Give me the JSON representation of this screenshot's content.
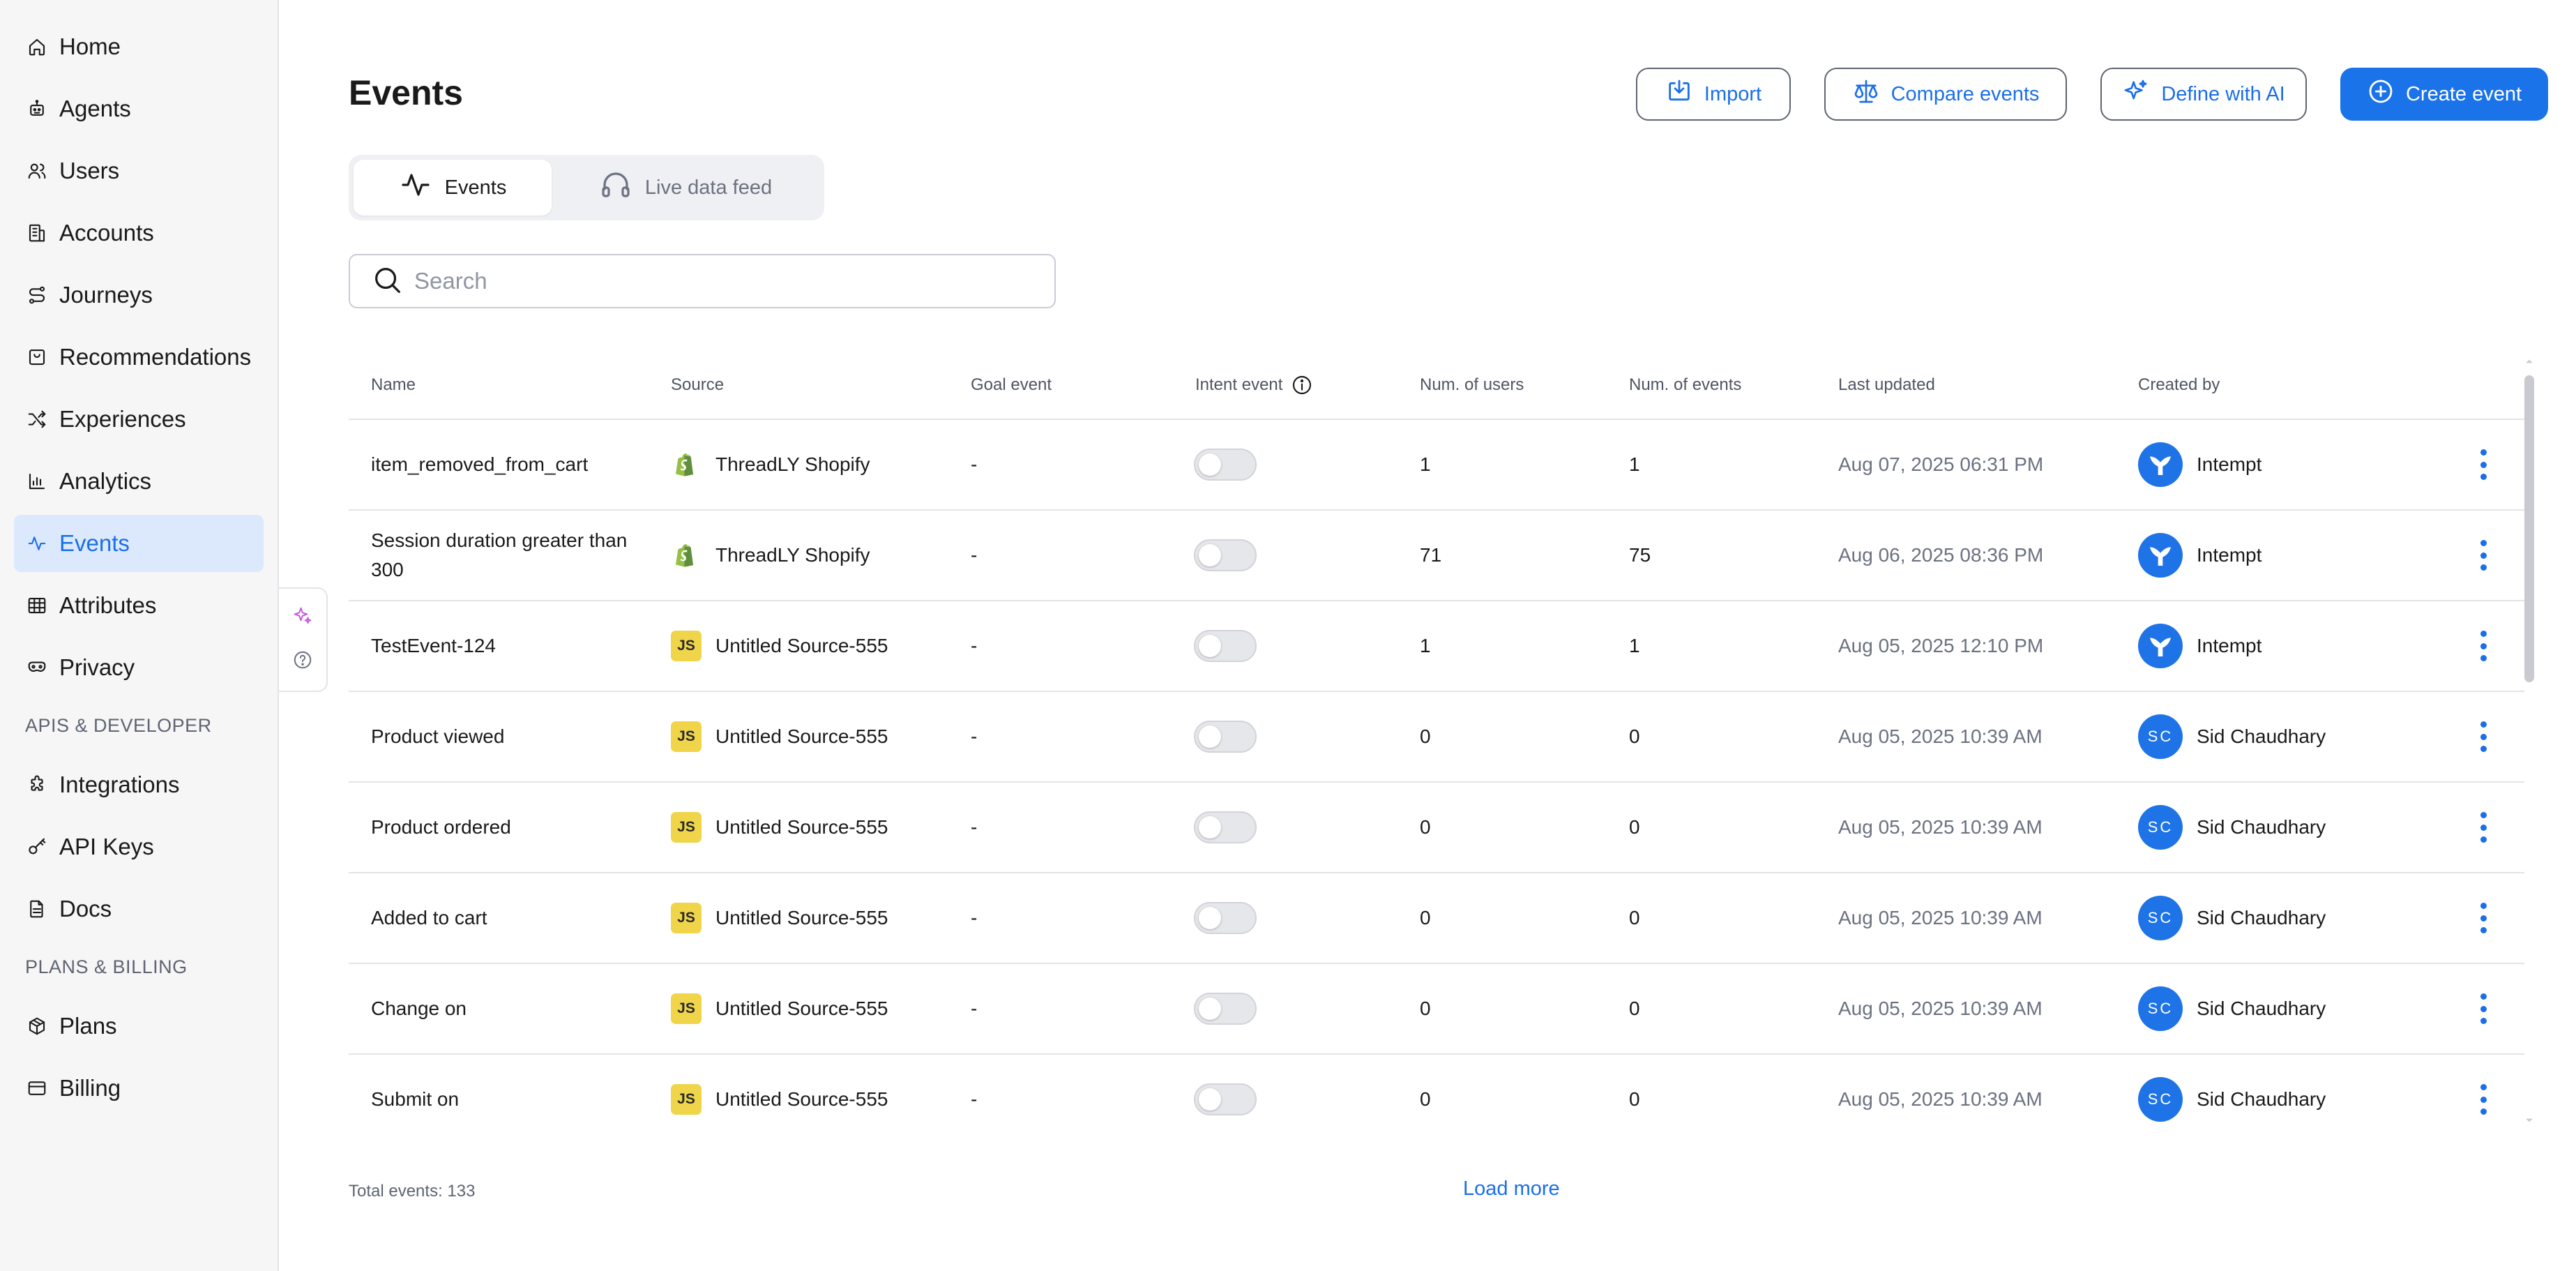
{
  "sidebar": {
    "main_items": [
      {
        "label": "Home",
        "icon": "home-icon"
      },
      {
        "label": "Agents",
        "icon": "bot-icon"
      },
      {
        "label": "Users",
        "icon": "users-icon"
      },
      {
        "label": "Accounts",
        "icon": "building-icon"
      },
      {
        "label": "Journeys",
        "icon": "route-icon"
      },
      {
        "label": "Recommendations",
        "icon": "shopping-bag-icon"
      },
      {
        "label": "Experiences",
        "icon": "shuffle-icon"
      },
      {
        "label": "Analytics",
        "icon": "bar-chart-icon"
      },
      {
        "label": "Events",
        "icon": "activity-icon",
        "active": true
      },
      {
        "label": "Attributes",
        "icon": "table-icon"
      },
      {
        "label": "Privacy",
        "icon": "privacy-mask-icon"
      }
    ],
    "section_dev": "APIS & DEVELOPER",
    "dev_items": [
      {
        "label": "Integrations",
        "icon": "puzzle-icon"
      },
      {
        "label": "API Keys",
        "icon": "key-icon"
      },
      {
        "label": "Docs",
        "icon": "document-icon"
      }
    ],
    "section_billing": "PLANS & BILLING",
    "billing_items": [
      {
        "label": "Plans",
        "icon": "package-icon"
      },
      {
        "label": "Billing",
        "icon": "credit-card-icon"
      }
    ]
  },
  "header": {
    "title": "Events",
    "import_label": "Import",
    "compare_label": "Compare events",
    "define_ai_label": "Define with AI",
    "create_label": "Create event"
  },
  "tabs": {
    "events_label": "Events",
    "live_feed_label": "Live data feed"
  },
  "search": {
    "placeholder": "Search",
    "value": ""
  },
  "table": {
    "columns": {
      "name": "Name",
      "source": "Source",
      "goal": "Goal event",
      "intent": "Intent event",
      "users": "Num. of users",
      "events": "Num. of events",
      "updated": "Last updated",
      "created": "Created by"
    },
    "rows": [
      {
        "name": "item_removed_from_cart",
        "source": "ThreadLY Shopify",
        "source_type": "shopify",
        "goal": "-",
        "users": "1",
        "events": "1",
        "updated": "Aug 07, 2025 06:31 PM",
        "created": "Intempt",
        "creator_type": "logo"
      },
      {
        "name": "Session duration greater than 300",
        "source": "ThreadLY Shopify",
        "source_type": "shopify",
        "goal": "-",
        "users": "71",
        "events": "75",
        "updated": "Aug 06, 2025 08:36 PM",
        "created": "Intempt",
        "creator_type": "logo"
      },
      {
        "name": "TestEvent-124",
        "source": "Untitled Source-555",
        "source_type": "js",
        "goal": "-",
        "users": "1",
        "events": "1",
        "updated": "Aug 05, 2025 12:10 PM",
        "created": "Intempt",
        "creator_type": "logo"
      },
      {
        "name": "Product viewed",
        "source": "Untitled Source-555",
        "source_type": "js",
        "goal": "-",
        "users": "0",
        "events": "0",
        "updated": "Aug 05, 2025 10:39 AM",
        "created": "Sid Chaudhary",
        "creator_type": "initials",
        "initials": "SC"
      },
      {
        "name": "Product ordered",
        "source": "Untitled Source-555",
        "source_type": "js",
        "goal": "-",
        "users": "0",
        "events": "0",
        "updated": "Aug 05, 2025 10:39 AM",
        "created": "Sid Chaudhary",
        "creator_type": "initials",
        "initials": "SC"
      },
      {
        "name": "Added to cart",
        "source": "Untitled Source-555",
        "source_type": "js",
        "goal": "-",
        "users": "0",
        "events": "0",
        "updated": "Aug 05, 2025 10:39 AM",
        "created": "Sid Chaudhary",
        "creator_type": "initials",
        "initials": "SC"
      },
      {
        "name": "Change on",
        "source": "Untitled Source-555",
        "source_type": "js",
        "goal": "-",
        "users": "0",
        "events": "0",
        "updated": "Aug 05, 2025 10:39 AM",
        "created": "Sid Chaudhary",
        "creator_type": "initials",
        "initials": "SC"
      },
      {
        "name": "Submit on",
        "source": "Untitled Source-555",
        "source_type": "js",
        "goal": "-",
        "users": "0",
        "events": "0",
        "updated": "Aug 05, 2025 10:39 AM",
        "created": "Sid Chaudhary",
        "creator_type": "initials",
        "initials": "SC"
      }
    ]
  },
  "js_badge": "JS",
  "footer": {
    "total": "Total events: 133",
    "load_more": "Load more"
  },
  "colors": {
    "accent": "#1a73e8",
    "active_nav_bg": "#dce9fd",
    "js_badge": "#f0d54b",
    "shopify_green": "#95bf47"
  }
}
